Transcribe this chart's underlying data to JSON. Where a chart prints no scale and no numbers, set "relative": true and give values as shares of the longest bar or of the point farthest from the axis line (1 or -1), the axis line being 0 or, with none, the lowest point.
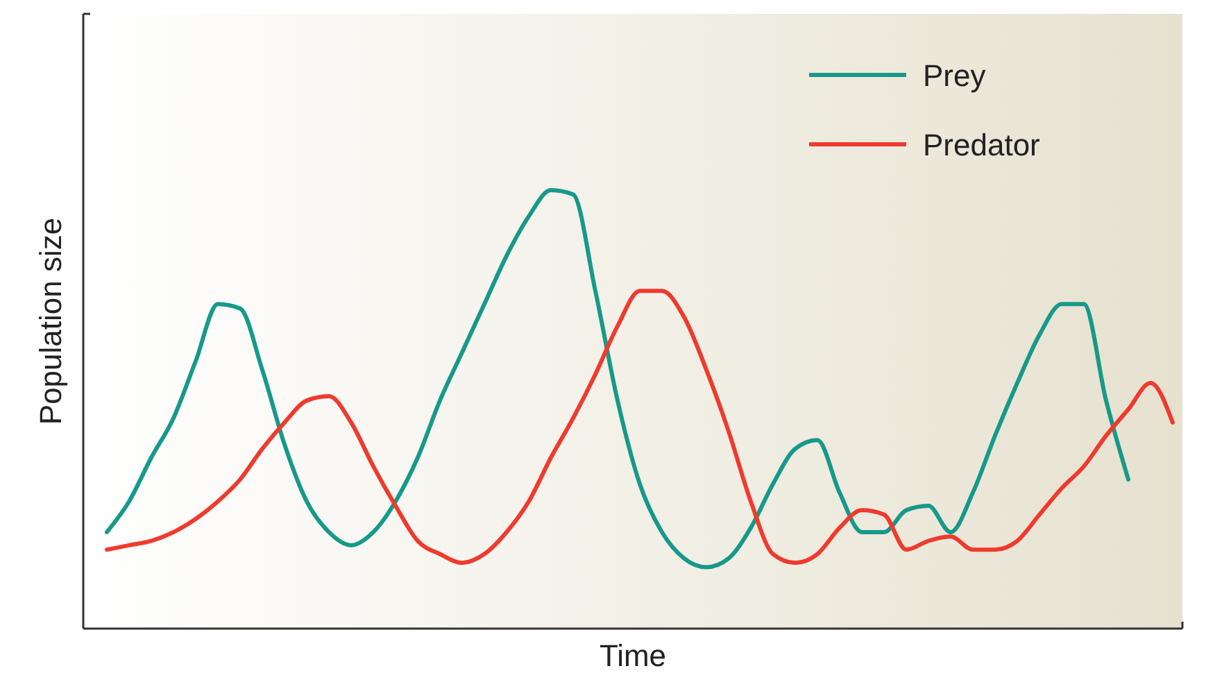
{
  "chart_data": {
    "type": "line",
    "relative": true,
    "xlabel": "Time",
    "ylabel": "Population size",
    "legend": "top right",
    "categories": [
      null,
      null,
      null,
      null,
      null,
      null,
      null,
      null,
      null,
      null,
      null,
      null,
      null,
      null,
      null,
      null,
      null,
      null,
      null,
      null,
      null,
      null,
      null,
      null,
      null,
      null,
      null,
      null,
      null,
      null,
      null,
      null,
      null,
      null,
      null,
      null,
      null,
      null,
      null,
      null,
      null,
      null,
      null,
      null,
      null,
      null,
      null,
      null,
      null
    ],
    "series": [
      {
        "name": "Prey",
        "color": "#16998a",
        "values": [
          0.22,
          0.29,
          0.39,
          0.48,
          0.61,
          0.74,
          0.73,
          0.59,
          0.42,
          0.29,
          0.22,
          0.19,
          0.22,
          0.29,
          0.39,
          0.52,
          0.63,
          0.74,
          0.85,
          0.94,
          1.0,
          0.99,
          0.77,
          0.52,
          0.33,
          0.22,
          0.16,
          0.14,
          0.16,
          0.23,
          0.33,
          0.41,
          0.43,
          0.31,
          0.22,
          0.22,
          0.27,
          0.28,
          0.22,
          0.31,
          0.44,
          0.56,
          0.67,
          0.74,
          0.74,
          0.52,
          0.34,
          null,
          null
        ]
      },
      {
        "name": "Predator",
        "color": "#ef3a2e",
        "values": [
          0.18,
          0.19,
          0.2,
          0.22,
          0.25,
          0.29,
          0.34,
          0.41,
          0.47,
          0.52,
          0.53,
          0.47,
          0.37,
          0.28,
          0.2,
          0.17,
          0.15,
          0.17,
          0.22,
          0.29,
          0.39,
          0.48,
          0.58,
          0.69,
          0.77,
          0.77,
          0.71,
          0.59,
          0.45,
          0.29,
          0.17,
          0.15,
          0.17,
          0.23,
          0.27,
          0.26,
          0.18,
          0.2,
          0.21,
          0.18,
          0.18,
          0.2,
          0.26,
          0.32,
          0.37,
          0.44,
          0.5,
          0.56,
          0.47
        ]
      }
    ]
  }
}
